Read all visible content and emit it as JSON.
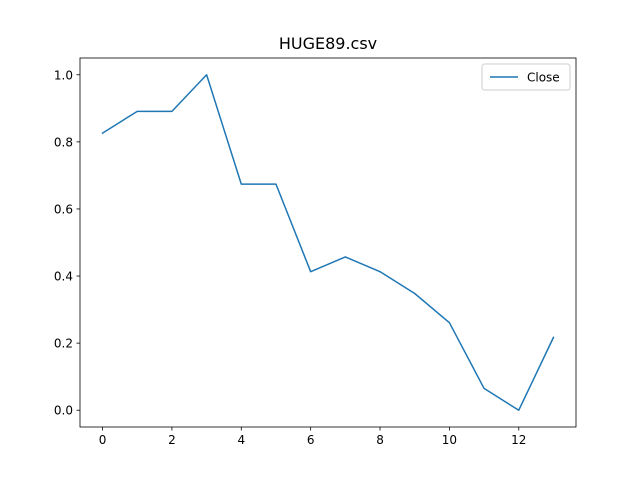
{
  "chart_data": {
    "type": "line",
    "title": "HUGE89.csv",
    "xlabel": "",
    "ylabel": "",
    "xlim": [
      -0.65,
      13.65
    ],
    "ylim": [
      -0.05,
      1.05
    ],
    "x_ticks": [
      0,
      2,
      4,
      6,
      8,
      10,
      12
    ],
    "y_ticks": [
      0.0,
      0.2,
      0.4,
      0.6,
      0.8,
      1.0
    ],
    "x_tick_labels": [
      "0",
      "2",
      "4",
      "6",
      "8",
      "10",
      "12"
    ],
    "y_tick_labels": [
      "0.0",
      "0.2",
      "0.4",
      "0.6",
      "0.8",
      "1.0"
    ],
    "grid": false,
    "legend_position": "top-right",
    "x": [
      0,
      1,
      2,
      3,
      4,
      5,
      6,
      7,
      8,
      9,
      10,
      11,
      12,
      13
    ],
    "series": [
      {
        "name": "Close",
        "color": "#1f77b4",
        "values": [
          0.826,
          0.891,
          0.891,
          1.0,
          0.674,
          0.674,
          0.413,
          0.457,
          0.413,
          0.348,
          0.261,
          0.065,
          0.0,
          0.217
        ]
      }
    ]
  }
}
